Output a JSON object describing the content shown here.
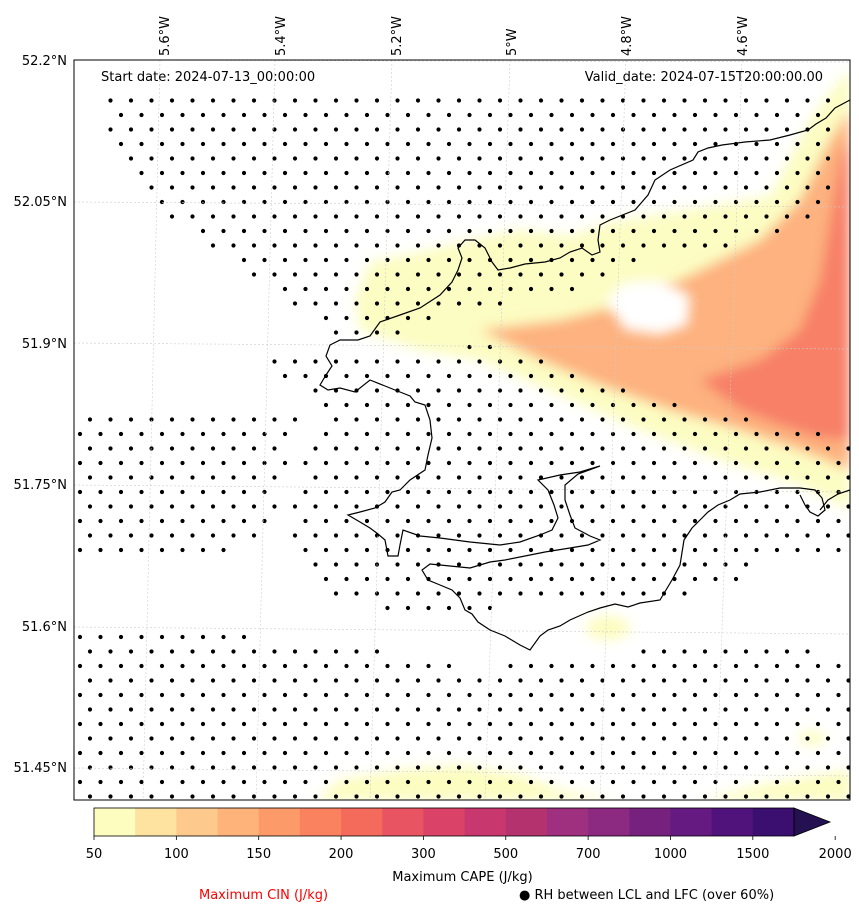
{
  "header": {
    "start_date": "Start date: 2024-07-13_00:00:00",
    "valid_date": "Valid_date: 2024-07-15T20:00:00.00"
  },
  "axes": {
    "lon_labels": [
      "5.6°W",
      "5.4°W",
      "5.2°W",
      "5°W",
      "4.8°W",
      "4.6°W"
    ],
    "lat_labels": [
      "52.2°N",
      "52.05°N",
      "51.9°N",
      "51.75°N",
      "51.6°N",
      "51.45°N"
    ]
  },
  "colorbar": {
    "label": "Maximum CAPE (J/kg)",
    "ticks": [
      "50",
      "100",
      "150",
      "200",
      "300",
      "500",
      "700",
      "1000",
      "1500",
      "2000"
    ],
    "colors": [
      "#fcfdbf",
      "#fde2a0",
      "#fec98d",
      "#feb37b",
      "#fd9a6a",
      "#fa825f",
      "#f46b5c",
      "#e95462",
      "#da4268",
      "#c8386f",
      "#b4336f",
      "#9f2f7f",
      "#8c2981",
      "#77217f",
      "#641a80",
      "#50127b",
      "#3b0f70",
      "#231151"
    ]
  },
  "legend": {
    "cin_label": "Maximum CIN (J/kg)",
    "cin_color": "#ff0000",
    "rh_label": "● RH between LCL and LFC (over 60%)"
  },
  "colors": {
    "coastline": "#000000",
    "stipple": "#000000",
    "grid": "#cccccc"
  }
}
